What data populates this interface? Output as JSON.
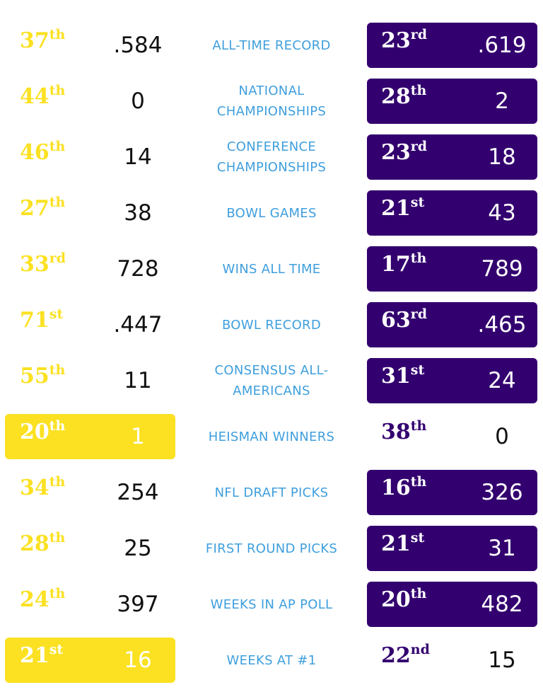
{
  "rows": [
    {
      "label": "ALL-TIME RECORD",
      "left": {
        "rank": "37",
        "suffix": "th",
        "value": ".584"
      },
      "right": {
        "rank": "23",
        "suffix": "rd",
        "value": ".619"
      },
      "winner": "right"
    },
    {
      "label": "NATIONAL CHAMPIONSHIPS",
      "left": {
        "rank": "44",
        "suffix": "th",
        "value": "0"
      },
      "right": {
        "rank": "28",
        "suffix": "th",
        "value": "2"
      },
      "winner": "right"
    },
    {
      "label": "CONFERENCE CHAMPIONSHIPS",
      "left": {
        "rank": "46",
        "suffix": "th",
        "value": "14"
      },
      "right": {
        "rank": "23",
        "suffix": "rd",
        "value": "18"
      },
      "winner": "right"
    },
    {
      "label": "BOWL GAMES",
      "left": {
        "rank": "27",
        "suffix": "th",
        "value": "38"
      },
      "right": {
        "rank": "21",
        "suffix": "st",
        "value": "43"
      },
      "winner": "right"
    },
    {
      "label": "WINS ALL TIME",
      "left": {
        "rank": "33",
        "suffix": "rd",
        "value": "728"
      },
      "right": {
        "rank": "17",
        "suffix": "th",
        "value": "789"
      },
      "winner": "right"
    },
    {
      "label": "BOWL RECORD",
      "left": {
        "rank": "71",
        "suffix": "st",
        "value": ".447"
      },
      "right": {
        "rank": "63",
        "suffix": "rd",
        "value": ".465"
      },
      "winner": "right"
    },
    {
      "label": "CONSENSUS ALL-AMERICANS",
      "left": {
        "rank": "55",
        "suffix": "th",
        "value": "11"
      },
      "right": {
        "rank": "31",
        "suffix": "st",
        "value": "24"
      },
      "winner": "right"
    },
    {
      "label": "HEISMAN WINNERS",
      "left": {
        "rank": "20",
        "suffix": "th",
        "value": "1"
      },
      "right": {
        "rank": "38",
        "suffix": "th",
        "value": "0"
      },
      "winner": "left"
    },
    {
      "label": "NFL DRAFT PICKS",
      "left": {
        "rank": "34",
        "suffix": "th",
        "value": "254"
      },
      "right": {
        "rank": "16",
        "suffix": "th",
        "value": "326"
      },
      "winner": "right"
    },
    {
      "label": "FIRST ROUND PICKS",
      "left": {
        "rank": "28",
        "suffix": "th",
        "value": "25"
      },
      "right": {
        "rank": "21",
        "suffix": "st",
        "value": "31"
      },
      "winner": "right"
    },
    {
      "label": "WEEKS IN AP POLL",
      "left": {
        "rank": "24",
        "suffix": "th",
        "value": "397"
      },
      "right": {
        "rank": "20",
        "suffix": "th",
        "value": "482"
      },
      "winner": "right"
    },
    {
      "label": "WEEKS AT #1",
      "left": {
        "rank": "21",
        "suffix": "st",
        "value": "16"
      },
      "right": {
        "rank": "22",
        "suffix": "nd",
        "value": "15"
      },
      "winner": "left"
    }
  ],
  "colors": {
    "gold": "#fbe122",
    "purple": "#33006f",
    "label_blue": "#3f9fdd",
    "value_dark": "#111111"
  }
}
